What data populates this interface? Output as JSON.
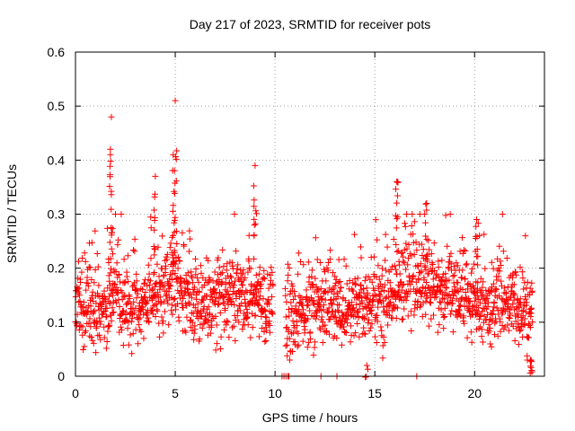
{
  "chart_data": {
    "type": "scatter",
    "title": "Day 217 of 2023, SRMTID for receiver pots",
    "xlabel": "GPS time / hours",
    "ylabel": "SRMTID / TECUs",
    "xlim": [
      0,
      23.5
    ],
    "ylim": [
      0,
      0.6
    ],
    "xticks": [
      0,
      5,
      10,
      15,
      20
    ],
    "yticks": [
      0,
      0.1,
      0.2,
      0.3,
      0.4,
      0.5,
      0.6
    ],
    "xtick_labels": [
      "0",
      "5",
      "10",
      "15",
      "20"
    ],
    "ytick_labels": [
      "0",
      "0.1",
      "0.2",
      "0.3",
      "0.4",
      "0.5",
      "0.6"
    ],
    "grid": true,
    "marker": "plus",
    "color": "#ff0000",
    "x_range_sampled": [
      0,
      22.9
    ],
    "gaps": [
      [
        9.9,
        10.5
      ]
    ],
    "baseline_profile": [
      [
        0.0,
        0.13
      ],
      [
        1.0,
        0.12
      ],
      [
        2.0,
        0.15
      ],
      [
        3.0,
        0.13
      ],
      [
        4.0,
        0.15
      ],
      [
        5.0,
        0.17
      ],
      [
        6.0,
        0.14
      ],
      [
        7.0,
        0.13
      ],
      [
        8.0,
        0.14
      ],
      [
        9.0,
        0.14
      ],
      [
        9.9,
        0.13
      ],
      [
        10.5,
        0.1
      ],
      [
        11.5,
        0.12
      ],
      [
        12.5,
        0.14
      ],
      [
        13.5,
        0.12
      ],
      [
        14.5,
        0.13
      ],
      [
        15.5,
        0.14
      ],
      [
        16.5,
        0.18
      ],
      [
        17.5,
        0.17
      ],
      [
        18.5,
        0.15
      ],
      [
        19.5,
        0.15
      ],
      [
        20.5,
        0.12
      ],
      [
        21.5,
        0.14
      ],
      [
        22.9,
        0.11
      ]
    ],
    "peaks": [
      {
        "x": 1.8,
        "y": 0.48
      },
      {
        "x": 1.75,
        "y": 0.42
      },
      {
        "x": 4.0,
        "y": 0.37
      },
      {
        "x": 5.0,
        "y": 0.51
      },
      {
        "x": 4.9,
        "y": 0.41
      },
      {
        "x": 9.0,
        "y": 0.39
      },
      {
        "x": 14.6,
        "y": 0.02
      },
      {
        "x": 16.1,
        "y": 0.36
      },
      {
        "x": 17.6,
        "y": 0.32
      },
      {
        "x": 20.1,
        "y": 0.29
      },
      {
        "x": 22.8,
        "y": 0.03
      }
    ],
    "zero_points_x": [
      10.35,
      10.45,
      10.55,
      10.65,
      10.7,
      12.3,
      13.1,
      17.1
    ]
  }
}
